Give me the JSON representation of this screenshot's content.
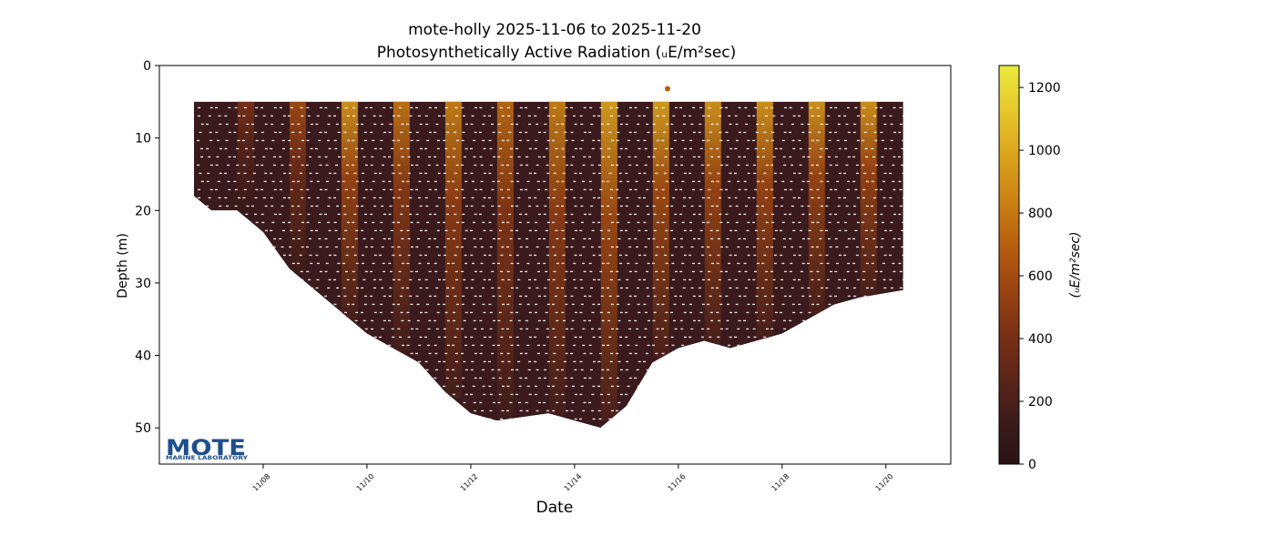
{
  "chart_data": {
    "type": "scatter",
    "title": "mote-holly 2025-11-06 to 2025-11-20",
    "subtitle": "Photosynthetically Active Radiation (ᵤE/m²sec)",
    "xlabel": "Date",
    "ylabel": "Depth (m)",
    "colorbar_label": "(ᵤE/m²sec)",
    "x_range": [
      "2025-11-06T00:00",
      "2025-11-21T06:00"
    ],
    "ylim": [
      55,
      0
    ],
    "y_inverted": true,
    "x_ticks": [
      "11/08",
      "11/10",
      "11/12",
      "11/14",
      "11/16",
      "11/18",
      "11/20"
    ],
    "y_ticks": [
      0,
      10,
      20,
      30,
      40,
      50
    ],
    "colorbar_range": [
      0,
      1270
    ],
    "colorbar_ticks": [
      0,
      200,
      400,
      600,
      800,
      1000,
      1200
    ],
    "colormap": [
      "#2a1316",
      "#3d1c1b",
      "#5e2619",
      "#7d3115",
      "#9c4512",
      "#b8610f",
      "#cc8314",
      "#dca41c",
      "#e6c82c",
      "#eaea3e"
    ],
    "background_value_color": "#3a1a1c",
    "data_window": {
      "start": "2025-11-06T16:00",
      "end": "2025-11-20T08:00"
    },
    "surface_depth_m": 5,
    "bottom_profile": [
      {
        "date": "2025-11-06T16:00",
        "depth": 18
      },
      {
        "date": "2025-11-07T00:00",
        "depth": 20
      },
      {
        "date": "2025-11-07T12:00",
        "depth": 20
      },
      {
        "date": "2025-11-08T00:00",
        "depth": 23
      },
      {
        "date": "2025-11-08T12:00",
        "depth": 28
      },
      {
        "date": "2025-11-09T00:00",
        "depth": 31
      },
      {
        "date": "2025-11-09T12:00",
        "depth": 34
      },
      {
        "date": "2025-11-10T00:00",
        "depth": 37
      },
      {
        "date": "2025-11-11T00:00",
        "depth": 41
      },
      {
        "date": "2025-11-11T12:00",
        "depth": 45
      },
      {
        "date": "2025-11-12T00:00",
        "depth": 48
      },
      {
        "date": "2025-11-12T12:00",
        "depth": 49
      },
      {
        "date": "2025-11-13T12:00",
        "depth": 48
      },
      {
        "date": "2025-11-14T00:00",
        "depth": 49
      },
      {
        "date": "2025-11-14T12:00",
        "depth": 50
      },
      {
        "date": "2025-11-15T00:00",
        "depth": 47
      },
      {
        "date": "2025-11-15T12:00",
        "depth": 41
      },
      {
        "date": "2025-11-16T00:00",
        "depth": 39
      },
      {
        "date": "2025-11-16T12:00",
        "depth": 38
      },
      {
        "date": "2025-11-17T00:00",
        "depth": 39
      },
      {
        "date": "2025-11-17T12:00",
        "depth": 38
      },
      {
        "date": "2025-11-18T00:00",
        "depth": 37
      },
      {
        "date": "2025-11-18T12:00",
        "depth": 35
      },
      {
        "date": "2025-11-19T00:00",
        "depth": 33
      },
      {
        "date": "2025-11-19T12:00",
        "depth": 32
      },
      {
        "date": "2025-11-20T08:00",
        "depth": 31
      }
    ],
    "daylight_bands": [
      {
        "date": "2025-11-07T16:00",
        "peak_par": 420
      },
      {
        "date": "2025-11-08T16:00",
        "peak_par": 600
      },
      {
        "date": "2025-11-09T16:00",
        "peak_par": 950
      },
      {
        "date": "2025-11-10T16:00",
        "peak_par": 800
      },
      {
        "date": "2025-11-11T16:00",
        "peak_par": 850
      },
      {
        "date": "2025-11-12T16:00",
        "peak_par": 750
      },
      {
        "date": "2025-11-13T16:00",
        "peak_par": 850
      },
      {
        "date": "2025-11-14T16:00",
        "peak_par": 1000
      },
      {
        "date": "2025-11-15T16:00",
        "peak_par": 1000
      },
      {
        "date": "2025-11-16T16:00",
        "peak_par": 950
      },
      {
        "date": "2025-11-17T16:00",
        "peak_par": 950
      },
      {
        "date": "2025-11-18T16:00",
        "peak_par": 950
      },
      {
        "date": "2025-11-19T16:00",
        "peak_par": 950
      }
    ],
    "outlier_point": {
      "date": "2025-11-15T19:00",
      "depth": 3.2,
      "par": 700
    },
    "grid": false,
    "legend": "colorbar-right"
  },
  "logo": {
    "text": "MOTE",
    "subtext": "MARINE LABORATORY",
    "color": "#1f4e8c"
  }
}
